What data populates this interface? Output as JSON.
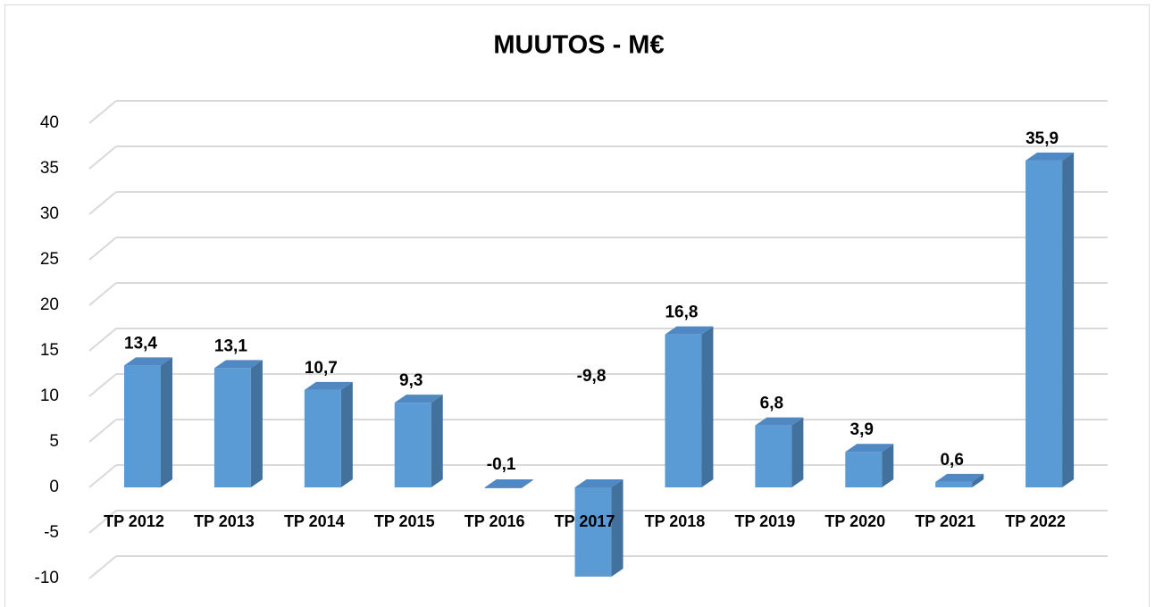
{
  "chart_data": {
    "type": "bar3d",
    "title": "MUUTOS - M€",
    "categories": [
      "TP 2012",
      "TP 2013",
      "TP 2014",
      "TP 2015",
      "TP 2016",
      "TP 2017",
      "TP 2018",
      "TP 2019",
      "TP 2020",
      "TP 2021",
      "TP 2022"
    ],
    "values": [
      13.4,
      13.1,
      10.7,
      9.3,
      -0.1,
      -9.8,
      16.8,
      6.8,
      3.9,
      0.6,
      35.9
    ],
    "value_labels": [
      "13,4",
      "13,1",
      "10,7",
      "9,3",
      "-0,1",
      "-9,8",
      "16,8",
      "6,8",
      "3,9",
      "0,6",
      "35,9"
    ],
    "color": "#5b9bd5",
    "ylim": [
      -10,
      40
    ],
    "yticks": [
      -10,
      -5,
      0,
      5,
      10,
      15,
      20,
      25,
      30,
      35,
      40
    ],
    "grid": true
  }
}
